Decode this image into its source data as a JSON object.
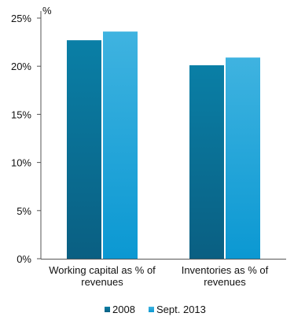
{
  "chart_data": {
    "type": "bar",
    "unit_label": "%",
    "categories": [
      [
        "Working capital as % of",
        "revenues"
      ],
      [
        "Inventories as % of",
        "revenues"
      ]
    ],
    "series": [
      {
        "name": "2008",
        "values": [
          22.7,
          20.1
        ],
        "color_top": "#0a7fa6",
        "color_bottom": "#0a5f82"
      },
      {
        "name": "Sept. 2013",
        "values": [
          23.6,
          20.9
        ],
        "color_top": "#3fb3e0",
        "color_bottom": "#0b98d2"
      }
    ],
    "ylim": [
      0,
      25
    ],
    "yticks": [
      0,
      5,
      10,
      15,
      20,
      25
    ],
    "ytick_labels": [
      "0%",
      "5%",
      "10%",
      "15%",
      "20%",
      "25%"
    ],
    "grid": false,
    "legend_position": "bottom"
  }
}
